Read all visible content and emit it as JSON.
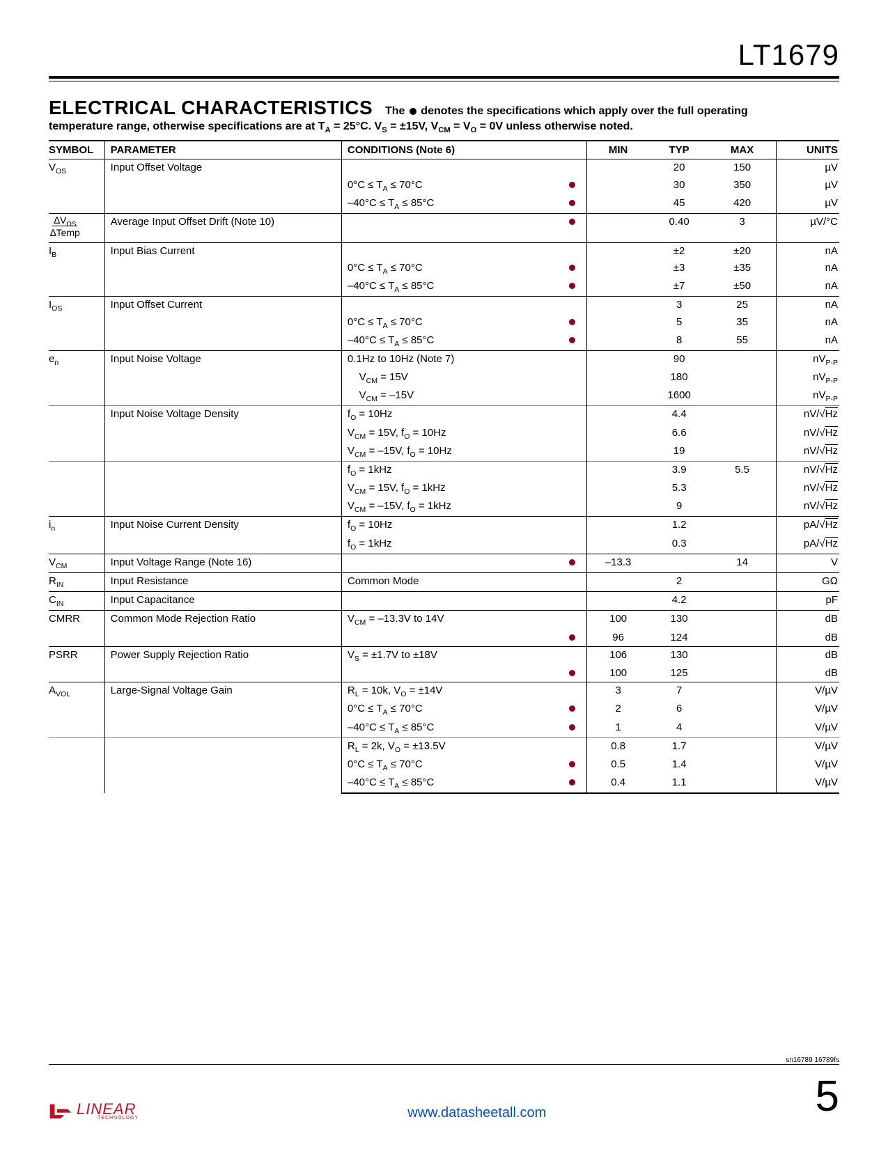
{
  "part_number": "LT1679",
  "section_title": "ELECTRICAL CHARACTERISTICS",
  "section_desc_1": "The",
  "section_desc_2": "denotes the specifications which apply over the full operating",
  "section_desc_3": "temperature range, otherwise specifications are at T",
  "section_desc_3b": " = 25°C. V",
  "section_desc_3c": " = ±15V, V",
  "section_desc_3d": " = V",
  "section_desc_3e": " = 0V unless otherwise noted.",
  "headers": {
    "symbol": "SYMBOL",
    "parameter": "PARAMETER",
    "conditions": "CONDITIONS (Note 6)",
    "min": "MIN",
    "typ": "TYP",
    "max": "MAX",
    "units": "UNITS"
  },
  "colors": {
    "dot": "#8b0020",
    "url": "#0050c8",
    "logo": "#c01020"
  },
  "rows": [
    {
      "sep": "major",
      "sym": "V<sub>OS</sub>",
      "param": "Input Offset Voltage",
      "lines": [
        {
          "cond": "",
          "dot": false,
          "min": "",
          "typ": "20",
          "max": "150",
          "units": "µV"
        },
        {
          "cond": "0°C ≤ T<sub>A</sub> ≤ 70°C",
          "dot": true,
          "min": "",
          "typ": "30",
          "max": "350",
          "units": "µV"
        },
        {
          "cond": "–40°C ≤ T<sub>A</sub> ≤ 85°C",
          "dot": true,
          "min": "",
          "typ": "45",
          "max": "420",
          "units": "µV"
        }
      ]
    },
    {
      "sep": "major",
      "sym_frac": {
        "top": "∆V<sub>OS</sub>",
        "bot": "∆Temp"
      },
      "param": "Average Input Offset Drift  (Note 10)",
      "lines": [
        {
          "cond": "",
          "dot": true,
          "min": "",
          "typ": "0.40",
          "max": "3",
          "units": "µV/°C"
        }
      ]
    },
    {
      "sep": "major",
      "sym": "I<sub>B</sub>",
      "param": "Input Bias Current",
      "lines": [
        {
          "cond": "",
          "dot": false,
          "min": "",
          "typ": "±2",
          "max": "±20",
          "units": "nA"
        },
        {
          "cond": "0°C ≤ T<sub>A</sub> ≤ 70°C",
          "dot": true,
          "min": "",
          "typ": "±3",
          "max": "±35",
          "units": "nA"
        },
        {
          "cond": "–40°C ≤ T<sub>A</sub> ≤ 85°C",
          "dot": true,
          "min": "",
          "typ": "±7",
          "max": "±50",
          "units": "nA"
        }
      ]
    },
    {
      "sep": "major",
      "sym": "I<sub>OS</sub>",
      "param": "Input Offset Current",
      "lines": [
        {
          "cond": "",
          "dot": false,
          "min": "",
          "typ": "3",
          "max": "25",
          "units": "nA"
        },
        {
          "cond": "0°C ≤ T<sub>A</sub> ≤ 70°C",
          "dot": true,
          "min": "",
          "typ": "5",
          "max": "35",
          "units": "nA"
        },
        {
          "cond": "–40°C ≤ T<sub>A</sub> ≤ 85°C",
          "dot": true,
          "min": "",
          "typ": "8",
          "max": "55",
          "units": "nA"
        }
      ]
    },
    {
      "sep": "major",
      "sym": "e<sub>n</sub>",
      "param": "Input Noise Voltage",
      "lines": [
        {
          "cond": "0.1Hz to 10Hz (Note 7)",
          "dot": false,
          "min": "",
          "typ": "90",
          "max": "",
          "units": "nV<sub>P-P</sub>"
        },
        {
          "cond": "&nbsp;&nbsp;&nbsp;&nbsp;V<sub>CM</sub> = 15V",
          "dot": false,
          "min": "",
          "typ": "180",
          "max": "",
          "units": "nV<sub>P-P</sub>"
        },
        {
          "cond": "&nbsp;&nbsp;&nbsp;&nbsp;V<sub>CM</sub> = –15V",
          "dot": false,
          "min": "",
          "typ": "1600",
          "max": "",
          "units": "nV<sub>P-P</sub>"
        }
      ]
    },
    {
      "sep": "minor",
      "sym": "",
      "param": "Input Noise Voltage Density",
      "lines": [
        {
          "cond": "f<sub>O</sub> = 10Hz",
          "dot": false,
          "min": "",
          "typ": "4.4",
          "max": "",
          "units": "nV/√<span class='sqrt'>Hz</span>"
        },
        {
          "cond": "V<sub>CM</sub> = 15V, f<sub>O</sub> = 10Hz",
          "dot": false,
          "min": "",
          "typ": "6.6",
          "max": "",
          "units": "nV/√<span class='sqrt'>Hz</span>"
        },
        {
          "cond": "V<sub>CM</sub> = –15V, f<sub>O</sub> = 10Hz",
          "dot": false,
          "min": "",
          "typ": "19",
          "max": "",
          "units": "nV/√<span class='sqrt'>Hz</span>"
        }
      ]
    },
    {
      "sep": "sub",
      "sym": "",
      "param": "",
      "lines": [
        {
          "cond": "f<sub>O</sub> = 1kHz",
          "dot": false,
          "min": "",
          "typ": "3.9",
          "max": "5.5",
          "units": "nV/√<span class='sqrt'>Hz</span>"
        },
        {
          "cond": "V<sub>CM</sub> = 15V, f<sub>O</sub> = 1kHz",
          "dot": false,
          "min": "",
          "typ": "5.3",
          "max": "",
          "units": "nV/√<span class='sqrt'>Hz</span>"
        },
        {
          "cond": "V<sub>CM</sub> = –15V, f<sub>O</sub> = 1kHz",
          "dot": false,
          "min": "",
          "typ": "9",
          "max": "",
          "units": "nV/√<span class='sqrt'>Hz</span>"
        }
      ]
    },
    {
      "sep": "major",
      "sym": "i<sub>n</sub>",
      "param": "Input Noise Current Density",
      "lines": [
        {
          "cond": "f<sub>O</sub> = 10Hz",
          "dot": false,
          "min": "",
          "typ": "1.2",
          "max": "",
          "units": "pA/√<span class='sqrt'>Hz</span>"
        },
        {
          "cond": "f<sub>O</sub> = 1kHz",
          "dot": false,
          "min": "",
          "typ": "0.3",
          "max": "",
          "units": "pA/√<span class='sqrt'>Hz</span>"
        }
      ]
    },
    {
      "sep": "major",
      "sym": "V<sub>CM</sub>",
      "param": "Input Voltage Range (Note 16)",
      "lines": [
        {
          "cond": "",
          "dot": true,
          "min": "–13.3",
          "typ": "",
          "max": "14",
          "units": "V"
        }
      ]
    },
    {
      "sep": "major",
      "sym": "R<sub>IN</sub>",
      "param": "Input Resistance",
      "lines": [
        {
          "cond": "Common Mode",
          "dot": false,
          "min": "",
          "typ": "2",
          "max": "",
          "units": "GΩ"
        }
      ]
    },
    {
      "sep": "major",
      "sym": "C<sub>IN</sub>",
      "param": "Input Capacitance",
      "lines": [
        {
          "cond": "",
          "dot": false,
          "min": "",
          "typ": "4.2",
          "max": "",
          "units": "pF"
        }
      ]
    },
    {
      "sep": "major",
      "sym": "CMRR",
      "param": "Common Mode Rejection Ratio",
      "lines": [
        {
          "cond": "V<sub>CM</sub> = –13.3V to 14V",
          "dot": false,
          "min": "100",
          "typ": "130",
          "max": "",
          "units": "dB"
        },
        {
          "cond": "",
          "dot": true,
          "min": "96",
          "typ": "124",
          "max": "",
          "units": "dB"
        }
      ]
    },
    {
      "sep": "major",
      "sym": "PSRR",
      "param": "Power Supply Rejection Ratio",
      "lines": [
        {
          "cond": "V<sub>S</sub> = ±1.7V to ±18V",
          "dot": false,
          "min": "106",
          "typ": "130",
          "max": "",
          "units": "dB"
        },
        {
          "cond": "",
          "dot": true,
          "min": "100",
          "typ": "125",
          "max": "",
          "units": "dB"
        }
      ]
    },
    {
      "sep": "major",
      "sym": "A<sub>VOL</sub>",
      "param": "Large-Signal Voltage Gain",
      "lines": [
        {
          "cond": "R<sub>L</sub> = 10k, V<sub>O</sub> = ±14V",
          "dot": false,
          "min": "3",
          "typ": "7",
          "max": "",
          "units": "V/µV"
        },
        {
          "cond": "0°C ≤ T<sub>A</sub> ≤ 70°C",
          "dot": true,
          "min": "2",
          "typ": "6",
          "max": "",
          "units": "V/µV"
        },
        {
          "cond": "–40°C ≤ T<sub>A</sub> ≤ 85°C",
          "dot": true,
          "min": "1",
          "typ": "4",
          "max": "",
          "units": "V/µV"
        }
      ]
    },
    {
      "sep": "sub",
      "sym": "",
      "param": "",
      "lines": [
        {
          "cond": "R<sub>L</sub> = 2k, V<sub>O</sub> = ±13.5V",
          "dot": false,
          "min": "0.8",
          "typ": "1.7",
          "max": "",
          "units": "V/µV"
        },
        {
          "cond": "0°C ≤ T<sub>A</sub> ≤ 70°C",
          "dot": true,
          "min": "0.5",
          "typ": "1.4",
          "max": "",
          "units": "V/µV"
        },
        {
          "cond": "–40°C ≤ T<sub>A</sub> ≤ 85°C",
          "dot": true,
          "min": "0.4",
          "typ": "1.1",
          "max": "",
          "units": "V/µV"
        }
      ]
    }
  ],
  "footer": {
    "small_code": "sn16789 16789fs",
    "url": "www.datasheetall.com",
    "page_number": "5",
    "logo_main": "LINEAR",
    "logo_sub": "TECHNOLOGY"
  }
}
